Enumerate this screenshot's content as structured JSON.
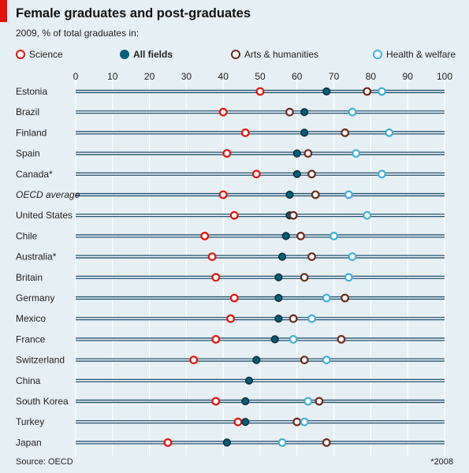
{
  "chart_data": {
    "type": "scatter",
    "title": "Female graduates and post-graduates",
    "subtitle": "2009, % of total graduates in:",
    "xlim": [
      0,
      100
    ],
    "xticks": [
      0,
      10,
      20,
      30,
      40,
      50,
      60,
      70,
      80,
      90,
      100
    ],
    "grid": true,
    "legend_position": "top",
    "categories": [
      "Estonia",
      "Brazil",
      "Finland",
      "Spain",
      "Canada*",
      "OECD average",
      "United States",
      "Chile",
      "Australia*",
      "Britain",
      "Germany",
      "Mexico",
      "France",
      "Switzerland",
      "China",
      "South Korea",
      "Turkey",
      "Japan"
    ],
    "italic_categories": [
      "OECD average"
    ],
    "series": [
      {
        "name": "Science",
        "color": "#e3120b",
        "filled": false,
        "values": [
          50,
          40,
          46,
          41,
          49,
          40,
          43,
          35,
          37,
          38,
          43,
          42,
          38,
          32,
          null,
          38,
          44,
          25
        ]
      },
      {
        "name": "All fields",
        "color": "#005f7a",
        "filled": true,
        "values": [
          68,
          62,
          62,
          60,
          60,
          58,
          58,
          57,
          56,
          55,
          55,
          55,
          54,
          49,
          47,
          46,
          46,
          41
        ]
      },
      {
        "name": "Arts & humanities",
        "color": "#6d2a1a",
        "filled": false,
        "values": [
          79,
          58,
          73,
          63,
          64,
          65,
          59,
          61,
          64,
          62,
          73,
          59,
          72,
          62,
          null,
          66,
          60,
          68
        ]
      },
      {
        "name": "Health & welfare",
        "color": "#3fb0d8",
        "filled": false,
        "values": [
          83,
          75,
          85,
          76,
          83,
          74,
          79,
          70,
          75,
          74,
          68,
          64,
          59,
          68,
          null,
          63,
          62,
          56
        ]
      }
    ],
    "source": "Source: OECD",
    "footnote": "*2008"
  }
}
